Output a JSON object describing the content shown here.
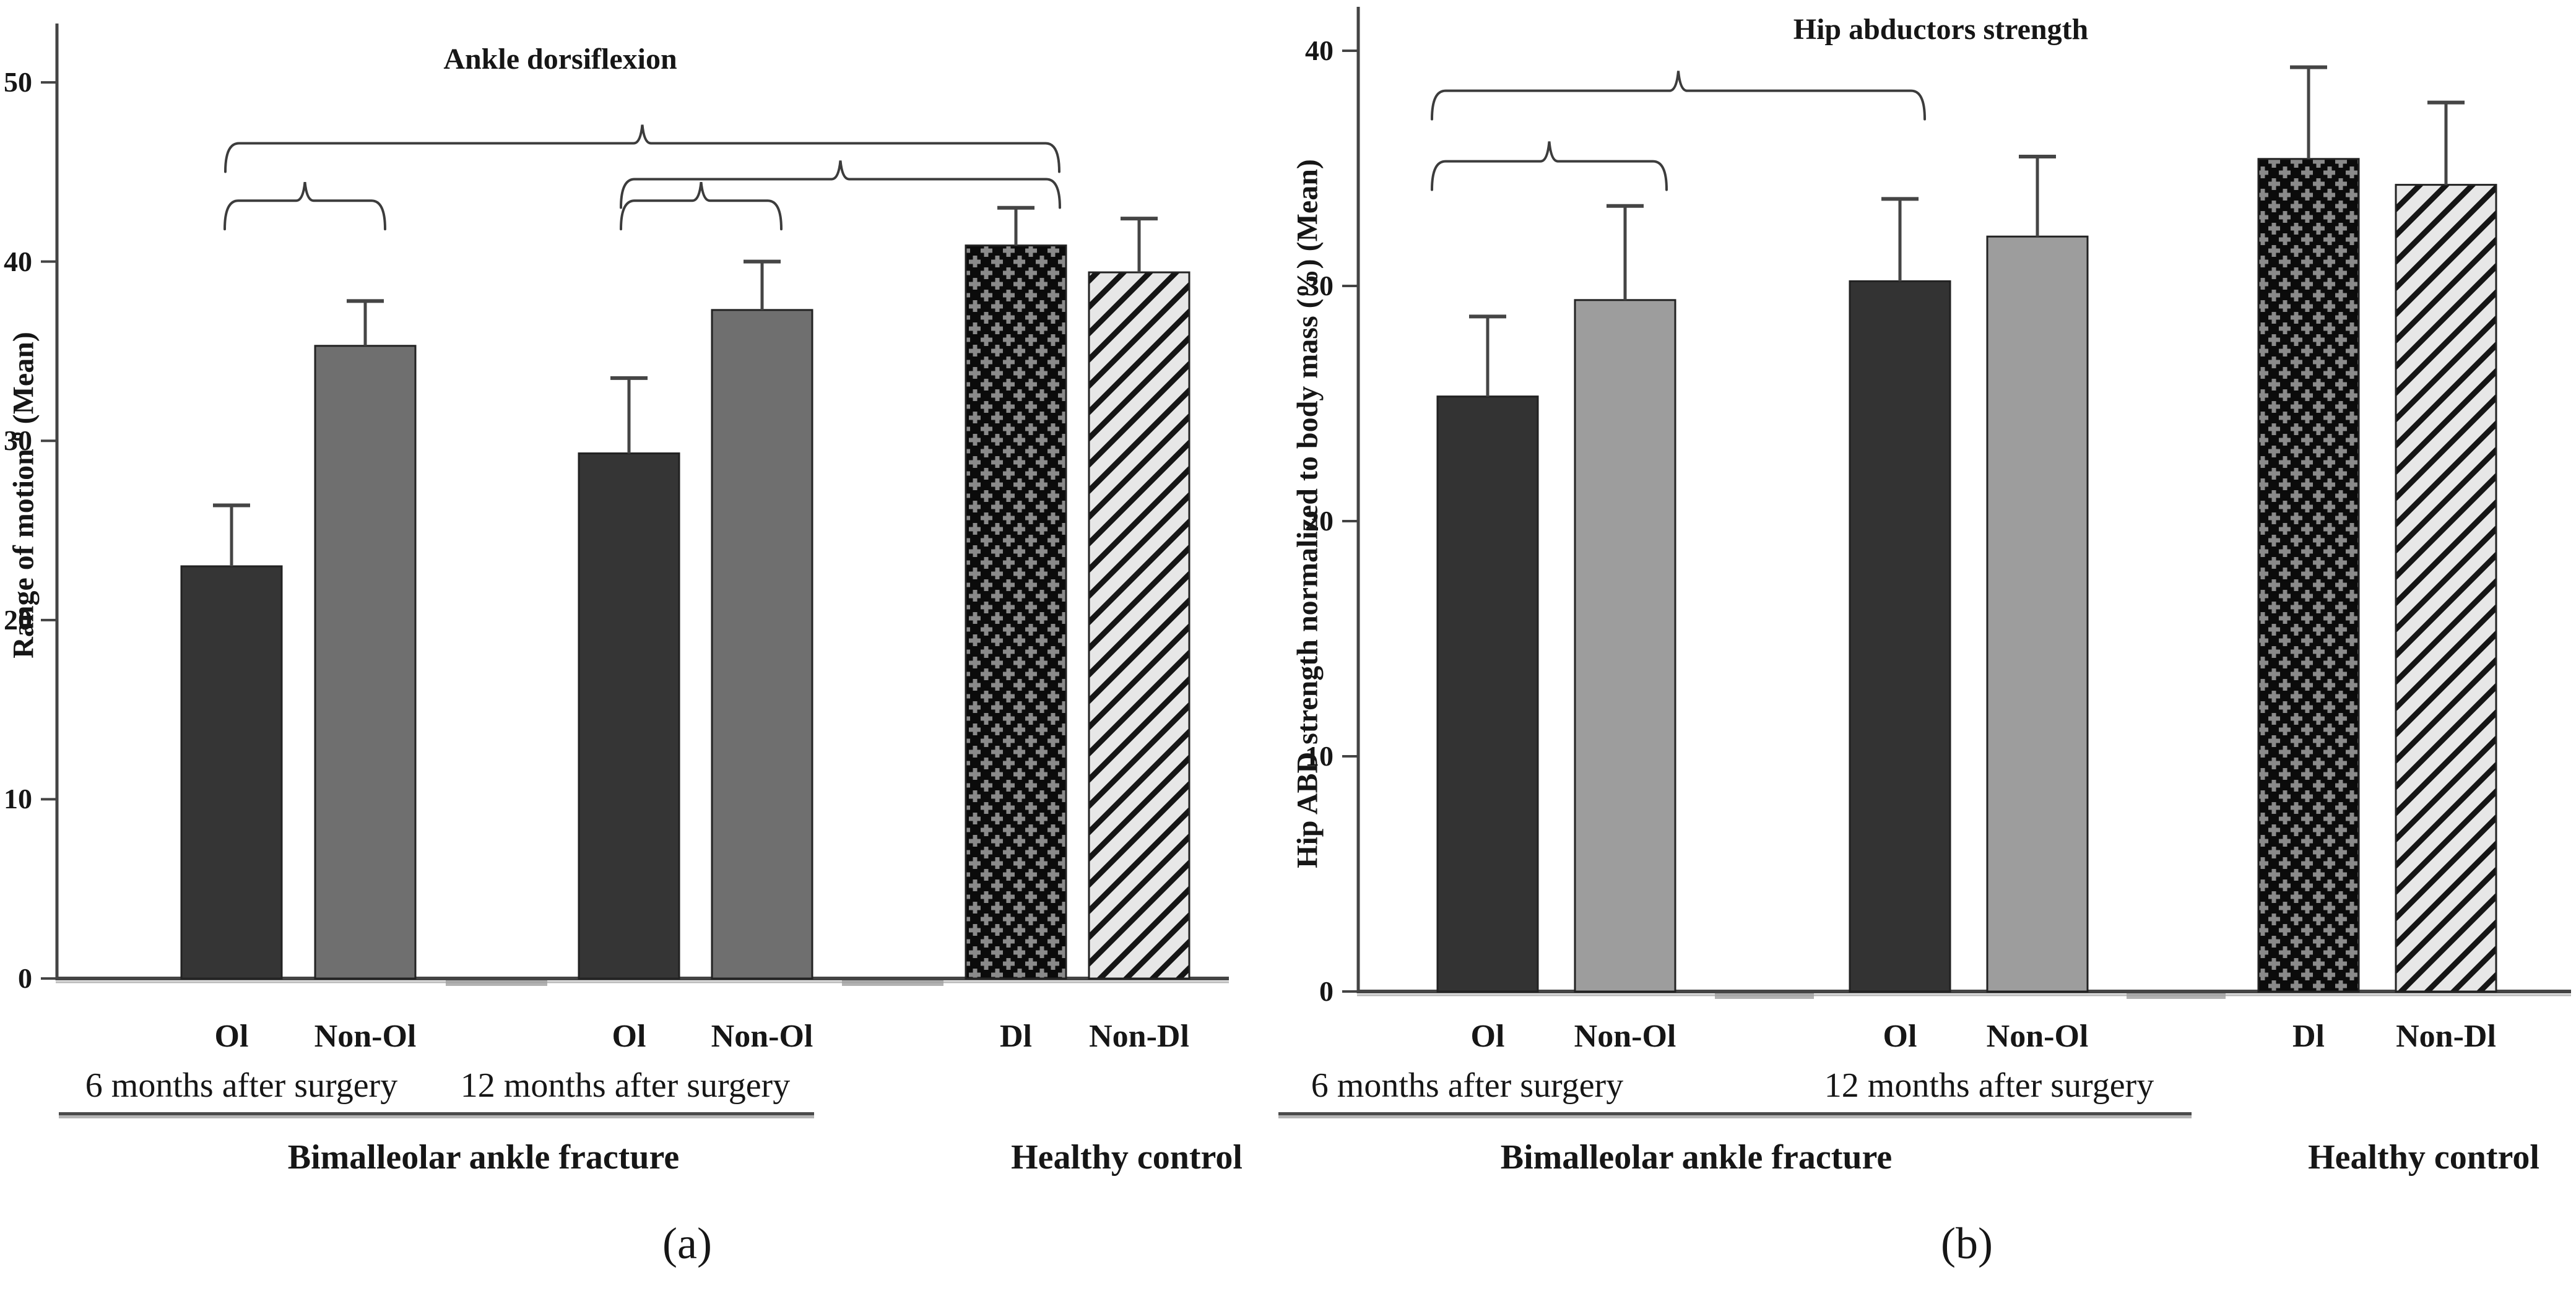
{
  "figure_type": "two-panel grouped bar chart with error bars and significance braces",
  "colors": {
    "axis": "#444444",
    "axis_shadow": "#b9b9b9",
    "error_bar": "#454545",
    "brace": "#3c3c3c",
    "text": "#161616",
    "bar_border": "#222222",
    "dark_bar": "#353535",
    "gray_bar_a": "#6f6f6f",
    "gray_bar_b": "#9d9d9d",
    "pattern_plus_bg": "#0b0b0b",
    "pattern_plus_fg": "#8a8a8a",
    "pattern_stripe_bg": "#e7e7e7",
    "pattern_stripe_fg": "#151515",
    "gap_stub": "#9f9f9f"
  },
  "chart_data": [
    {
      "type": "bar",
      "panel": "a",
      "caption": "(a)",
      "title": "Ankle dorsiflexion",
      "ylabel": "Range of motion º (Mean)",
      "ylim": [
        0,
        52.8
      ],
      "yticks": [
        0,
        10,
        20,
        30,
        40,
        50
      ],
      "grid": false,
      "legend": "none",
      "categories": [
        "Ol",
        "Non-Ol",
        "Ol",
        "Non-Ol",
        "Dl",
        "Non-Dl"
      ],
      "values": [
        23.0,
        35.3,
        29.3,
        37.3,
        40.9,
        39.4
      ],
      "errors_upper": [
        3.4,
        2.5,
        4.2,
        2.7,
        2.1,
        3.0
      ],
      "bar_fill": [
        "#353535",
        "#6f6f6f",
        "#353535",
        "#6f6f6f",
        "pattern:plus",
        "pattern:stripe"
      ],
      "period_labels": [
        "6 months after surgery",
        "12 months after surgery"
      ],
      "group_labels": [
        "Bimalleolar  ankle  fracture",
        "Healthy  control"
      ],
      "significance_braces": [
        {
          "from": 0,
          "to": 4,
          "level": 46.6,
          "dx1": -10,
          "dx2": 70
        },
        {
          "from": 2,
          "to": 4,
          "level": 44.6,
          "dx1": -13,
          "dx2": 71
        },
        {
          "from": 0,
          "to": 1,
          "level": 43.4,
          "dx1": -11,
          "dx2": 32
        },
        {
          "from": 2,
          "to": 3,
          "level": 43.4,
          "dx1": -13,
          "dx2": 31
        }
      ]
    },
    {
      "type": "bar",
      "panel": "b",
      "caption": "(b)",
      "title": "Hip abductors strength",
      "ylabel": "Hip ABD strength normalized to body mass (%) (Mean)",
      "ylim": [
        0,
        41.5
      ],
      "yticks": [
        0,
        10,
        20,
        30,
        40
      ],
      "grid": false,
      "legend": "none",
      "categories": [
        "Ol",
        "Non-Ol",
        "Ol",
        "Non-Ol",
        "Dl",
        "Non-Dl"
      ],
      "values": [
        25.3,
        29.4,
        30.2,
        32.1,
        35.4,
        34.3
      ],
      "errors_upper": [
        3.4,
        4.0,
        3.5,
        3.4,
        3.9,
        3.5
      ],
      "bar_fill": [
        "#333333",
        "#9d9d9d",
        "#333333",
        "#9d9d9d",
        "pattern:plus",
        "pattern:stripe"
      ],
      "period_labels": [
        "6 months after surgery",
        "12 months after surgery"
      ],
      "group_labels": [
        "Bimalleolar  ankle  fracture",
        "Healthy  control"
      ],
      "significance_braces": [
        {
          "from": 0,
          "to": 2,
          "level": 38.3,
          "dx1": -90,
          "dx2": 40
        },
        {
          "from": 0,
          "to": 1,
          "level": 35.3,
          "dx1": -90,
          "dx2": 67
        }
      ]
    }
  ]
}
